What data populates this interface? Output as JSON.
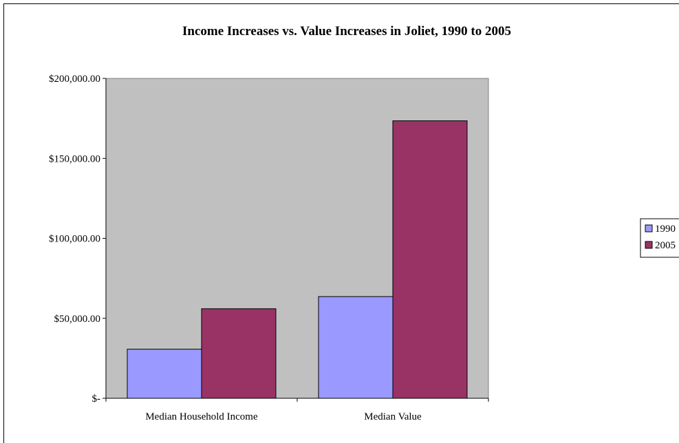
{
  "chart_data": {
    "type": "bar",
    "title": "Income Increases vs. Value Increases in Joliet, 1990 to 2005",
    "xlabel": "",
    "ylabel": "",
    "categories": [
      "Median Household Income",
      "Median Value"
    ],
    "series": [
      {
        "name": "1990",
        "values": [
          30700,
          63600
        ]
      },
      {
        "name": "2005",
        "values": [
          56000,
          173500
        ]
      }
    ],
    "ylim": [
      0,
      200000
    ],
    "yticks": [
      0,
      50000,
      100000,
      150000,
      200000
    ],
    "ytick_labels": [
      "$-",
      "$50,000.00",
      "$100,000.00",
      "$150,000.00",
      "$200,000.00"
    ],
    "grid": false,
    "legend_position": "right",
    "colors": {
      "plot_background": "#c0c0c0",
      "series_1990": "#9999ff",
      "series_2005": "#993366",
      "bar_outline": "#000000"
    }
  }
}
